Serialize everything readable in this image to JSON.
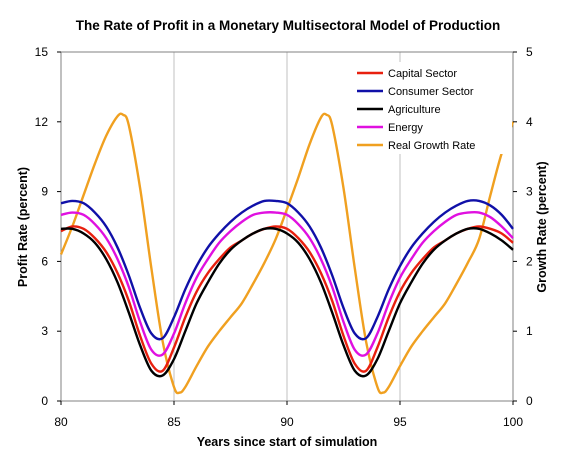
{
  "chart_data": {
    "type": "line",
    "title": "The Rate  of Profit in a Monetary Multisectoral Model  of Production",
    "xlabel": "Years since start of simulation",
    "ylabel": "Profit Rate (percent)",
    "y2label": "Growth Rate (percent)",
    "xlim": [
      80,
      100
    ],
    "ylim": [
      0,
      15
    ],
    "y2lim": [
      0,
      5
    ],
    "xticks": [
      "80",
      "85",
      "90",
      "95",
      "100"
    ],
    "yticks": [
      "0",
      "3",
      "6",
      "9",
      "12",
      "15"
    ],
    "y2ticks": [
      "0",
      "1",
      "2",
      "3",
      "4",
      "5"
    ],
    "grid": "vertical",
    "legend_position": "top-right",
    "series": [
      {
        "name": "Capital Sector",
        "color": "#e8200f",
        "axis": "left",
        "x": [
          80,
          80.5,
          81,
          81.5,
          82,
          82.5,
          83,
          83.5,
          84,
          84.5,
          85,
          85.5,
          86,
          86.5,
          87,
          87.5,
          88,
          88.5,
          89,
          89.5,
          90,
          90.5,
          91,
          91.5,
          92,
          92.5,
          93,
          93.5,
          94,
          94.5,
          95,
          95.5,
          96,
          96.5,
          97,
          97.5,
          98,
          98.5,
          99,
          99.5,
          100
        ],
        "values": [
          7.3,
          7.5,
          7.4,
          7.0,
          6.4,
          5.5,
          4.3,
          2.8,
          1.6,
          1.3,
          2.3,
          3.6,
          4.7,
          5.5,
          6.1,
          6.6,
          6.9,
          7.2,
          7.4,
          7.5,
          7.4,
          7.0,
          6.4,
          5.5,
          4.3,
          2.8,
          1.6,
          1.3,
          2.3,
          3.6,
          4.7,
          5.5,
          6.1,
          6.6,
          6.9,
          7.2,
          7.4,
          7.5,
          7.4,
          7.2,
          6.8
        ]
      },
      {
        "name": "Consumer Sector",
        "color": "#1010a8",
        "axis": "left",
        "x": [
          80,
          80.5,
          81,
          81.5,
          82,
          82.5,
          83,
          83.5,
          84,
          84.5,
          85,
          85.5,
          86,
          86.5,
          87,
          87.5,
          88,
          88.5,
          89,
          89.5,
          90,
          90.5,
          91,
          91.5,
          92,
          92.5,
          93,
          93.5,
          94,
          94.5,
          95,
          95.5,
          96,
          96.5,
          97,
          97.5,
          98,
          98.5,
          99,
          99.5,
          100
        ],
        "values": [
          8.5,
          8.6,
          8.5,
          8.1,
          7.5,
          6.6,
          5.4,
          4.0,
          2.9,
          2.7,
          3.6,
          4.8,
          5.8,
          6.6,
          7.2,
          7.7,
          8.1,
          8.4,
          8.6,
          8.6,
          8.5,
          8.1,
          7.5,
          6.6,
          5.4,
          4.0,
          2.9,
          2.7,
          3.6,
          4.8,
          5.8,
          6.6,
          7.2,
          7.7,
          8.1,
          8.4,
          8.6,
          8.6,
          8.4,
          8.0,
          7.4
        ]
      },
      {
        "name": "Agriculture",
        "color": "#000000",
        "axis": "left",
        "x": [
          80,
          80.5,
          81,
          81.5,
          82,
          82.5,
          83,
          83.5,
          84,
          84.5,
          85,
          85.5,
          86,
          86.5,
          87,
          87.5,
          88,
          88.5,
          89,
          89.5,
          90,
          90.5,
          91,
          91.5,
          92,
          92.5,
          93,
          93.5,
          94,
          94.5,
          95,
          95.5,
          96,
          96.5,
          97,
          97.5,
          98,
          98.5,
          99,
          99.5,
          100
        ],
        "values": [
          7.4,
          7.4,
          7.2,
          6.8,
          6.1,
          5.1,
          3.8,
          2.4,
          1.3,
          1.1,
          1.8,
          3.0,
          4.2,
          5.1,
          5.9,
          6.5,
          6.9,
          7.2,
          7.4,
          7.4,
          7.2,
          6.8,
          6.1,
          5.1,
          3.8,
          2.4,
          1.3,
          1.1,
          1.8,
          3.0,
          4.2,
          5.1,
          5.9,
          6.5,
          6.9,
          7.2,
          7.4,
          7.4,
          7.2,
          6.9,
          6.5
        ]
      },
      {
        "name": "Energy",
        "color": "#e010e0",
        "axis": "left",
        "x": [
          80,
          80.5,
          81,
          81.5,
          82,
          82.5,
          83,
          83.5,
          84,
          84.5,
          85,
          85.5,
          86,
          86.5,
          87,
          87.5,
          88,
          88.5,
          89,
          89.5,
          90,
          90.5,
          91,
          91.5,
          92,
          92.5,
          93,
          93.5,
          94,
          94.5,
          95,
          95.5,
          96,
          96.5,
          97,
          97.5,
          98,
          98.5,
          99,
          99.5,
          100
        ],
        "values": [
          8.0,
          8.1,
          8.0,
          7.6,
          7.0,
          6.1,
          4.9,
          3.4,
          2.2,
          2.0,
          2.9,
          4.2,
          5.3,
          6.1,
          6.8,
          7.3,
          7.7,
          8.0,
          8.1,
          8.1,
          8.0,
          7.6,
          7.0,
          6.1,
          4.9,
          3.4,
          2.2,
          2.0,
          2.9,
          4.2,
          5.3,
          6.1,
          6.8,
          7.3,
          7.7,
          8.0,
          8.1,
          8.1,
          7.9,
          7.5,
          7.0
        ]
      },
      {
        "name": "Real Growth Rate",
        "color": "#f0a020",
        "axis": "right",
        "x": [
          80,
          80.5,
          81,
          81.5,
          82,
          82.5,
          82.75,
          83,
          83.5,
          84,
          84.5,
          85,
          85.25,
          85.5,
          86,
          86.5,
          87,
          87.5,
          88,
          88.5,
          89,
          89.5,
          90,
          90.5,
          91,
          91.5,
          91.75,
          92,
          92.5,
          93,
          93.5,
          94,
          94.25,
          94.5,
          95,
          95.5,
          96,
          96.5,
          97,
          97.5,
          98,
          98.5,
          99,
          99.5,
          100
        ],
        "values": [
          2.1,
          2.5,
          2.95,
          3.4,
          3.8,
          4.08,
          4.1,
          3.95,
          3.05,
          1.9,
          0.85,
          0.2,
          0.12,
          0.2,
          0.5,
          0.78,
          1.0,
          1.2,
          1.4,
          1.68,
          1.98,
          2.32,
          2.75,
          3.2,
          3.68,
          4.06,
          4.1,
          3.95,
          3.05,
          1.9,
          0.85,
          0.2,
          0.12,
          0.2,
          0.5,
          0.78,
          1.0,
          1.2,
          1.4,
          1.68,
          1.98,
          2.32,
          2.95,
          3.55,
          4.0
        ]
      }
    ]
  }
}
